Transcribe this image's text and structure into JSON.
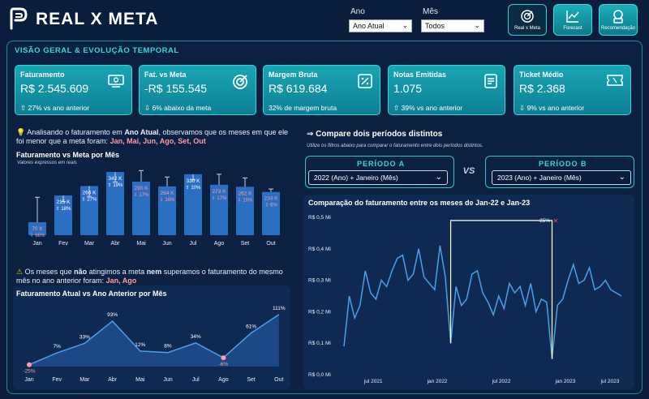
{
  "header": {
    "title": "REAL X META",
    "filters": {
      "ano": {
        "label": "Ano",
        "value": "Ano Atual"
      },
      "mes": {
        "label": "Mês",
        "value": "Todos"
      }
    },
    "nav": [
      {
        "label": "Real x Meta",
        "icon": "target-icon"
      },
      {
        "label": "Forecast",
        "icon": "line-chart-icon"
      },
      {
        "label": "Recomendação",
        "icon": "lightbulb-icon"
      }
    ]
  },
  "section_title": "VISÃO GERAL & EVOLUÇÃO TEMPORAL",
  "kpis": [
    {
      "title": "Faturamento",
      "value": "R$ 2.545.609",
      "sub": "⇧ 27% vs ano anterior",
      "icon": "money-icon"
    },
    {
      "title": "Fat. vs Meta",
      "value": "-R$ 155.545",
      "sub": "⇩ 6% abaixo da meta",
      "icon": "target-icon"
    },
    {
      "title": "Margem Bruta",
      "value": "R$ 619.684",
      "sub": "32% de margem bruta",
      "icon": "percent-icon"
    },
    {
      "title": "Notas Emitidas",
      "value": "1.075",
      "sub": "⇧ 39% vs ano anterior",
      "icon": "document-icon"
    },
    {
      "title": "Ticket Médio",
      "value": "R$ 2.368",
      "sub": "⇩ 9% vs ano anterior",
      "icon": "ticket-icon"
    }
  ],
  "insight1": {
    "prefix": "Analisando o faturamento em ",
    "bold": "Ano Atual",
    "middle": ", observamos que os meses em que ele foi menor que a meta foram: ",
    "highlight": "Jan, Mai, Jun, Ago, Set, Out"
  },
  "insight2": {
    "p1": "Os meses que ",
    "b1": "não",
    "p2": " atingimos a meta ",
    "b2": "nem",
    "p3": " superamos o faturamento do mesmo mês no ano anterior foram: ",
    "highlight": "Jan, Ago"
  },
  "compare": {
    "title": "⇒ Compare dois períodos distintos",
    "subtitle": "Utilize os filtros abaixo para comparar o faturamento entre dois períodos distintos.",
    "period_a": {
      "label": "PERÍODO A",
      "value": "2022 (Ano) + Janeiro (Mês)"
    },
    "period_b": {
      "label": "PERÍODO B",
      "value": "2023 (Ano) + Janeiro (Mês)"
    },
    "vs": "VS"
  },
  "chart_data": [
    {
      "type": "bar",
      "title": "Faturamento vs Meta por Mês",
      "subtitle": "Valores expressos em reais",
      "categories": [
        "Jan",
        "Fev",
        "Mar",
        "Abr",
        "Mai",
        "Jun",
        "Jul",
        "Ago",
        "Set",
        "Out"
      ],
      "values": [
        70,
        215,
        266,
        342,
        290,
        264,
        330,
        273,
        262,
        234
      ],
      "value_labels": [
        "70 K",
        "215 K",
        "266 K",
        "342 K",
        "290 K",
        "264 K",
        "330 K",
        "273 K",
        "262 K",
        "234 K"
      ],
      "pct_labels": [
        "⇩ 66%",
        "⇧ 18%",
        "⇧ 27%",
        "⇧ 19%",
        "⇩ 17%",
        "⇩ 16%",
        "⇧ 10%",
        "⇩ 17%",
        "⇩ 15%",
        "⇩ 6%"
      ],
      "below_target": [
        true,
        false,
        false,
        false,
        true,
        true,
        false,
        true,
        true,
        true
      ],
      "target": [
        205,
        182,
        210,
        288,
        350,
        315,
        300,
        330,
        310,
        250
      ]
    },
    {
      "type": "area",
      "title": "Faturamento Atual vs Ano Anterior por Mês",
      "categories": [
        "Jan",
        "Fev",
        "Mar",
        "Abr",
        "Mai",
        "Jun",
        "Jul",
        "Ago",
        "Set",
        "Out"
      ],
      "values": [
        -25,
        7,
        33,
        93,
        12,
        8,
        34,
        -6,
        61,
        111
      ],
      "labels": [
        "-25%",
        "7%",
        "33%",
        "93%",
        "12%",
        "8%",
        "34%",
        "-6%",
        "61%",
        "111%"
      ],
      "negative_markers": [
        0,
        7
      ]
    },
    {
      "type": "line",
      "title": "Comparação do faturamento entre os meses de Jan-22 e Jan-23",
      "y_ticks": [
        "R$ 0,5 Mi",
        "R$ 0,4 Mi",
        "R$ 0,3 Mi",
        "R$ 0,2 Mi",
        "R$ 0,1 Mi",
        "R$ 0,0 Mi"
      ],
      "ylim": [
        0,
        0.5
      ],
      "x_ticks": [
        "jul 2021",
        "jan 2022",
        "jul 2022",
        "jan 2023",
        "jul 2023"
      ],
      "values": [
        0.09,
        0.25,
        0.18,
        0.22,
        0.33,
        0.26,
        0.24,
        0.3,
        0.28,
        0.33,
        0.37,
        0.38,
        0.3,
        0.32,
        0.4,
        0.31,
        0.29,
        0.27,
        0.41,
        0.31,
        0.1,
        0.28,
        0.22,
        0.24,
        0.32,
        0.33,
        0.26,
        0.23,
        0.19,
        0.25,
        0.21,
        0.29,
        0.26,
        0.28,
        0.22,
        0.29,
        0.2,
        0.24,
        0.23,
        0.05,
        0.22,
        0.24,
        0.3,
        0.35,
        0.29,
        0.3,
        0.34,
        0.27,
        0.28,
        0.3,
        0.27,
        0.26,
        0.25
      ],
      "comparison_label": "-25%"
    }
  ]
}
